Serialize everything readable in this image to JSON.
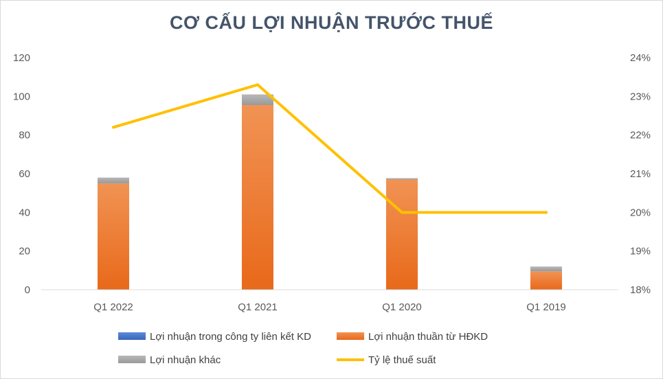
{
  "chart_data": {
    "type": "bar",
    "stacked": true,
    "title": "CƠ CẤU LỢI NHUẬN TRƯỚC THUẾ",
    "categories": [
      "Q1 2022",
      "Q1 2021",
      "Q1 2020",
      "Q1 2019"
    ],
    "series": [
      {
        "name": "Lợi nhuận trong công ty liên kết KD",
        "type": "bar",
        "axis": "left",
        "color": "#4472c4",
        "values": [
          0,
          0,
          0,
          0
        ]
      },
      {
        "name": "Lợi nhuận thuần từ HĐKD",
        "type": "bar",
        "axis": "left",
        "color": "#ed7d31",
        "values": [
          55,
          95.5,
          57,
          9.5
        ]
      },
      {
        "name": "Lợi nhuận khác",
        "type": "bar",
        "axis": "left",
        "color": "#a5a5a5",
        "values": [
          3,
          5.5,
          0.7,
          2.5
        ]
      },
      {
        "name": "Tỷ lệ thuế suất",
        "type": "line",
        "axis": "right",
        "color": "#ffc000",
        "values": [
          0.222,
          0.233,
          0.2,
          0.2
        ]
      }
    ],
    "y_left": {
      "range": [
        0,
        120
      ],
      "ticks": [
        0,
        20,
        40,
        60,
        80,
        100,
        120
      ],
      "tick_labels": [
        "0",
        "20",
        "40",
        "60",
        "80",
        "100",
        "120"
      ]
    },
    "y_right": {
      "range": [
        0.18,
        0.24
      ],
      "ticks": [
        0.18,
        0.19,
        0.2,
        0.21,
        0.22,
        0.23,
        0.24
      ],
      "tick_labels": [
        "18%",
        "19%",
        "20%",
        "21%",
        "22%",
        "23%",
        "24%"
      ]
    },
    "grid": false,
    "legend_position": "bottom"
  }
}
